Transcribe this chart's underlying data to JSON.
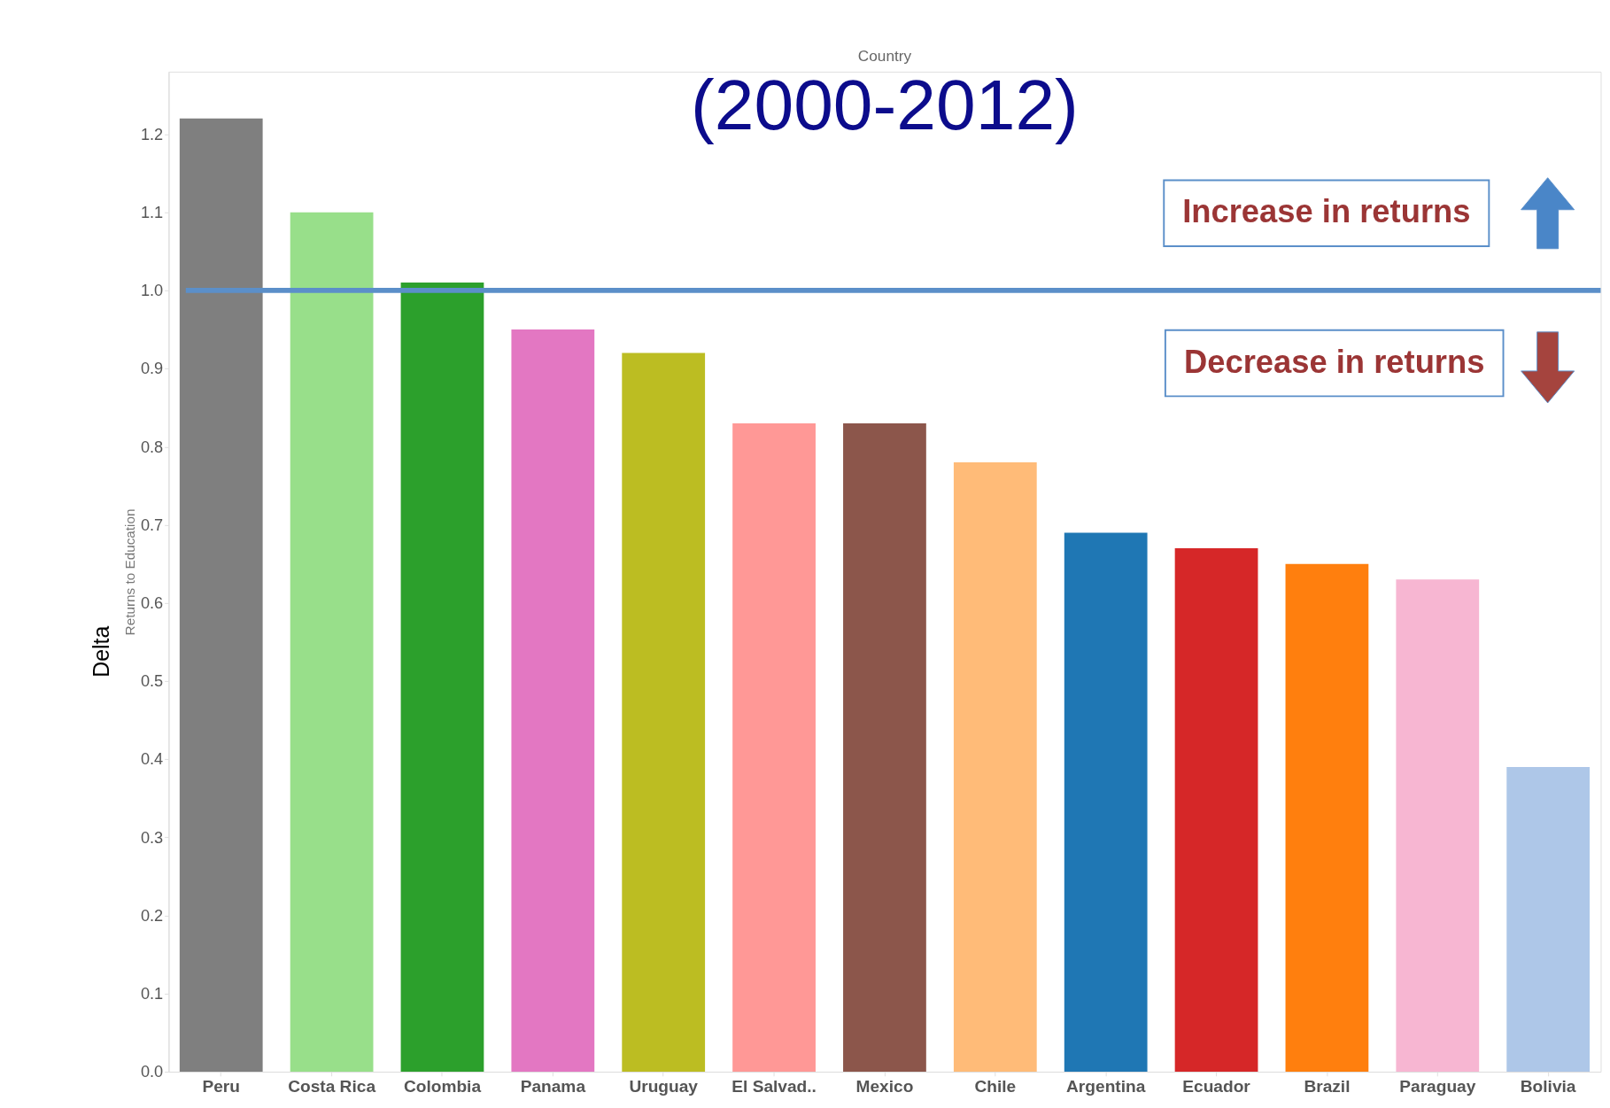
{
  "chart_data": {
    "type": "bar",
    "title": "(2000-2012)",
    "xlabel": "Country",
    "ylabel": "Returns to Education",
    "categories": [
      "Peru",
      "Costa Rica",
      "Colombia",
      "Panama",
      "Uruguay",
      "El Salvad..",
      "Mexico",
      "Chile",
      "Argentina",
      "Ecuador",
      "Brazil",
      "Paraguay",
      "Bolivia"
    ],
    "values": [
      1.22,
      1.1,
      1.01,
      0.95,
      0.92,
      0.83,
      0.83,
      0.78,
      0.69,
      0.67,
      0.65,
      0.63,
      0.39
    ],
    "colors": [
      "#7f7f7f",
      "#98df8a",
      "#2ca02c",
      "#e377c2",
      "#bcbd22",
      "#ff9896",
      "#8c564b",
      "#ffbb78",
      "#1f77b4",
      "#d62728",
      "#ff7f0e",
      "#f7b6d2",
      "#aec7e8"
    ],
    "ylim": [
      0,
      1.28
    ],
    "yticks": [
      {
        "value": 0,
        "label": "0.0"
      },
      {
        "value": 0.1,
        "label": "0.1"
      },
      {
        "value": 0.2,
        "label": "0.2"
      },
      {
        "value": 0.3,
        "label": "0.3"
      },
      {
        "value": 0.4,
        "label": "0.4"
      },
      {
        "value": 0.5,
        "label": "0.5"
      },
      {
        "value": 0.6,
        "label": "0.6"
      },
      {
        "value": 0.7,
        "label": "0.7"
      },
      {
        "value": 0.8,
        "label": "0.8"
      },
      {
        "value": 0.9,
        "label": "0.9"
      },
      {
        "value": 1.0,
        "label": "1.0"
      },
      {
        "value": 1.1,
        "label": "1.1"
      },
      {
        "value": 1.2,
        "label": "1.2"
      }
    ],
    "ref_lines": [
      {
        "axis": "y",
        "value": 1.0,
        "color": "#5b8fc9"
      }
    ],
    "annotations": [
      "Increase in returns",
      "Decrease in returns",
      "Delta"
    ],
    "grid": false
  }
}
